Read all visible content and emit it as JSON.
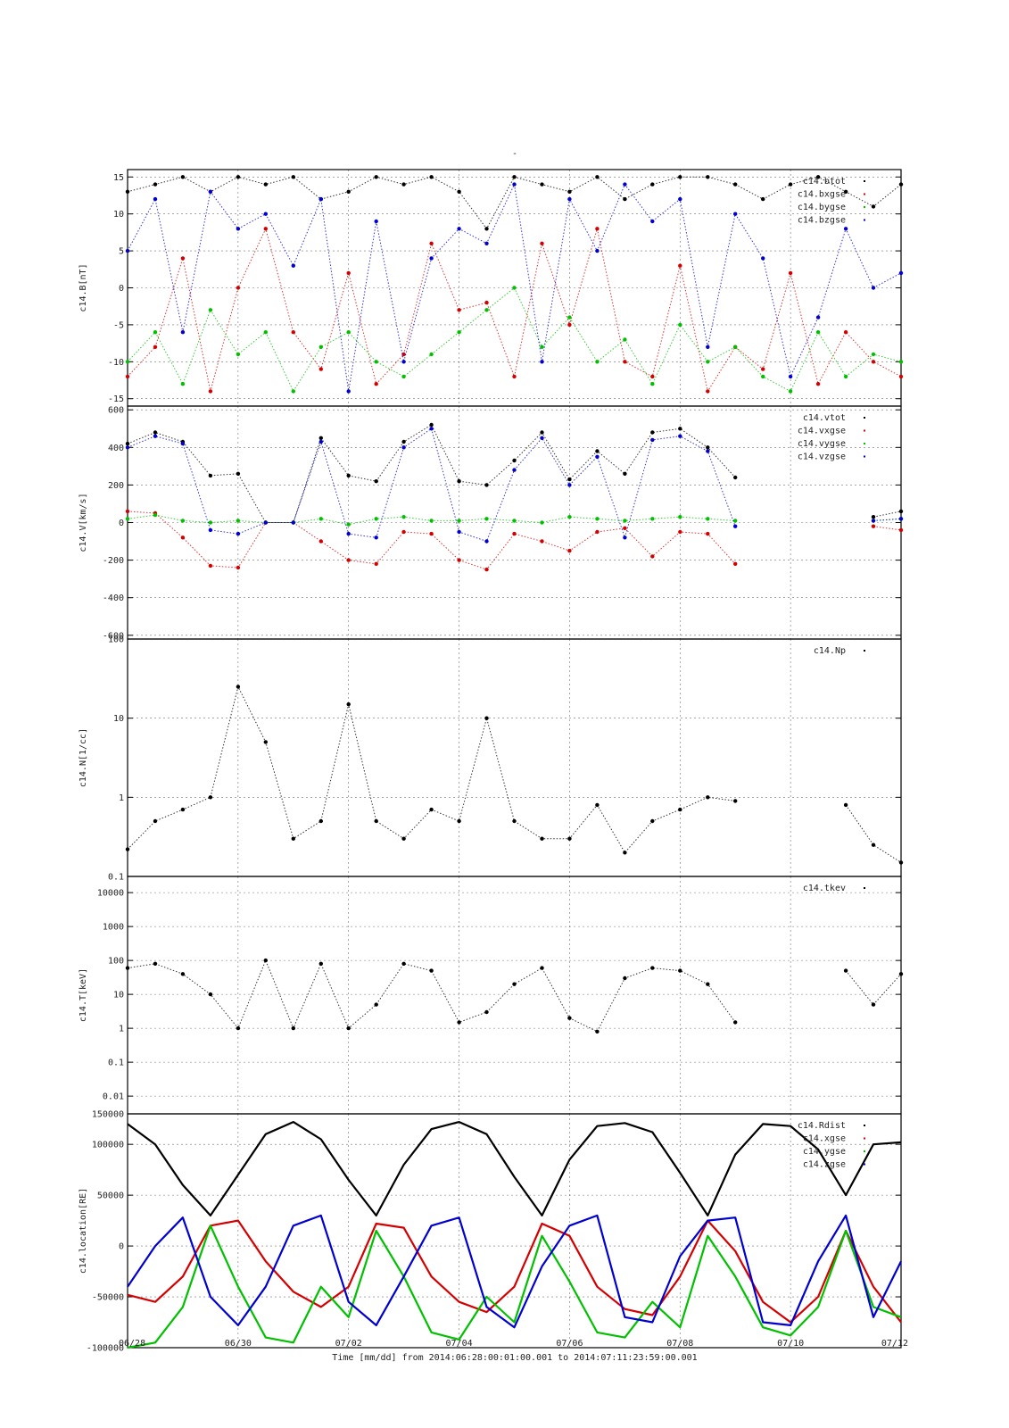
{
  "page_title": "-",
  "footer": "Time [mm/dd]  from 2014:06:28:00:01:00.001  to  2014:07:11:23:59:00.001",
  "x_ticks": [
    "06/28",
    "06/30",
    "07/02",
    "07/04",
    "07/06",
    "07/08",
    "07/10",
    "07/12"
  ],
  "colors": {
    "black": "#000000",
    "red": "#d40000",
    "green": "#00c000",
    "blue": "#0000d0"
  },
  "chart_data": [
    {
      "type": "scatter",
      "ylabel": "c14.B[nT]",
      "ylim": [
        -16,
        16
      ],
      "y_scale": "linear",
      "yticks": [
        15,
        10,
        5,
        0,
        -5,
        -10,
        -15
      ],
      "ytick_labels": [
        "15",
        "10",
        "5",
        "0",
        "-5",
        "-10",
        "-15"
      ],
      "legend_position": "top-right",
      "series": [
        {
          "name": "c14.btot",
          "color": "#000000",
          "x": [
            0.0,
            0.5,
            1.0,
            1.5,
            2.0,
            2.5,
            3.0,
            3.5,
            4.0,
            4.5,
            5.0,
            5.5,
            6.0,
            6.5,
            7.0,
            7.5,
            8.0,
            8.5,
            9.0,
            9.5,
            10.0,
            10.5,
            11.0,
            11.5,
            12.0,
            12.5,
            13.0,
            13.5,
            14.0
          ],
          "y": [
            13,
            14,
            15,
            13,
            15,
            14,
            15,
            12,
            13,
            15,
            14,
            15,
            13,
            8,
            15,
            14,
            13,
            15,
            12,
            14,
            15,
            15,
            14,
            12,
            14,
            15,
            13,
            11,
            14
          ]
        },
        {
          "name": "c14.bxgse",
          "color": "#d40000",
          "x": [
            0.0,
            0.5,
            1.0,
            1.5,
            2.0,
            2.5,
            3.0,
            3.5,
            4.0,
            4.5,
            5.0,
            5.5,
            6.0,
            6.5,
            7.0,
            7.5,
            8.0,
            8.5,
            9.0,
            9.5,
            10.0,
            10.5,
            11.0,
            11.5,
            12.0,
            12.5,
            13.0,
            13.5,
            14.0
          ],
          "y": [
            -12,
            -8,
            4,
            -14,
            0,
            8,
            -6,
            -11,
            2,
            -13,
            -9,
            6,
            -3,
            -2,
            -12,
            6,
            -5,
            8,
            -10,
            -12,
            3,
            -14,
            -8,
            -11,
            2,
            -13,
            -6,
            -10,
            -12
          ]
        },
        {
          "name": "c14.bygse",
          "color": "#00c000",
          "x": [
            0.0,
            0.5,
            1.0,
            1.5,
            2.0,
            2.5,
            3.0,
            3.5,
            4.0,
            4.5,
            5.0,
            5.5,
            6.0,
            6.5,
            7.0,
            7.5,
            8.0,
            8.5,
            9.0,
            9.5,
            10.0,
            10.5,
            11.0,
            11.5,
            12.0,
            12.5,
            13.0,
            13.5,
            14.0
          ],
          "y": [
            -10,
            -6,
            -13,
            -3,
            -9,
            -6,
            -14,
            -8,
            -6,
            -10,
            -12,
            -9,
            -6,
            -3,
            0,
            -8,
            -4,
            -10,
            -7,
            -13,
            -5,
            -10,
            -8,
            -12,
            -14,
            -6,
            -12,
            -9,
            -10
          ]
        },
        {
          "name": "c14.bzgse",
          "color": "#0000d0",
          "x": [
            0.0,
            0.5,
            1.0,
            1.5,
            2.0,
            2.5,
            3.0,
            3.5,
            4.0,
            4.5,
            5.0,
            5.5,
            6.0,
            6.5,
            7.0,
            7.5,
            8.0,
            8.5,
            9.0,
            9.5,
            10.0,
            10.5,
            11.0,
            11.5,
            12.0,
            12.5,
            13.0,
            13.5,
            14.0
          ],
          "y": [
            5,
            12,
            -6,
            13,
            8,
            10,
            3,
            12,
            -14,
            9,
            -10,
            4,
            8,
            6,
            14,
            -10,
            12,
            5,
            14,
            9,
            12,
            -8,
            10,
            4,
            -12,
            -4,
            8,
            0,
            2
          ]
        }
      ]
    },
    {
      "type": "scatter",
      "ylabel": "c14.V[km/s]",
      "ylim": [
        -620,
        620
      ],
      "y_scale": "linear",
      "yticks": [
        600,
        400,
        200,
        0,
        -200,
        -400,
        -600
      ],
      "ytick_labels": [
        "600",
        "400",
        "200",
        "0",
        "-200",
        "-400",
        "-600"
      ],
      "legend_position": "top-right",
      "series": [
        {
          "name": "c14.vtot",
          "color": "#000000",
          "x": [
            0.0,
            0.5,
            1.0,
            1.5,
            2.0,
            2.5,
            3.0,
            3.5,
            4.0,
            4.5,
            5.0,
            5.5,
            6.0,
            6.5,
            7.0,
            7.5,
            8.0,
            8.5,
            9.0,
            9.5,
            10.0,
            10.5,
            11.0,
            11.5,
            12.0,
            12.5,
            13.0,
            13.5,
            14.0
          ],
          "y": [
            420,
            480,
            430,
            250,
            260,
            0,
            0,
            450,
            250,
            220,
            430,
            520,
            220,
            200,
            330,
            480,
            230,
            380,
            260,
            480,
            500,
            400,
            240,
            null,
            null,
            null,
            null,
            30,
            60
          ]
        },
        {
          "name": "c14.vxgse",
          "color": "#d40000",
          "x": [
            0.0,
            0.5,
            1.0,
            1.5,
            2.0,
            2.5,
            3.0,
            3.5,
            4.0,
            4.5,
            5.0,
            5.5,
            6.0,
            6.5,
            7.0,
            7.5,
            8.0,
            8.5,
            9.0,
            9.5,
            10.0,
            10.5,
            11.0,
            11.5,
            12.0,
            12.5,
            13.0,
            13.5,
            14.0
          ],
          "y": [
            60,
            50,
            -80,
            -230,
            -240,
            0,
            0,
            -100,
            -200,
            -220,
            -50,
            -60,
            -200,
            -250,
            -60,
            -100,
            -150,
            -50,
            -30,
            -180,
            -50,
            -60,
            -220,
            null,
            null,
            null,
            null,
            -20,
            -40
          ]
        },
        {
          "name": "c14.vygse",
          "color": "#00c000",
          "x": [
            0.0,
            0.5,
            1.0,
            1.5,
            2.0,
            2.5,
            3.0,
            3.5,
            4.0,
            4.5,
            5.0,
            5.5,
            6.0,
            6.5,
            7.0,
            7.5,
            8.0,
            8.5,
            9.0,
            9.5,
            10.0,
            10.5,
            11.0,
            11.5,
            12.0,
            12.5,
            13.0,
            13.5,
            14.0
          ],
          "y": [
            20,
            40,
            10,
            0,
            10,
            0,
            0,
            20,
            -10,
            20,
            30,
            10,
            10,
            20,
            10,
            0,
            30,
            20,
            10,
            20,
            30,
            20,
            10,
            null,
            null,
            null,
            null,
            10,
            20
          ]
        },
        {
          "name": "c14.vzgse",
          "color": "#0000d0",
          "x": [
            0.0,
            0.5,
            1.0,
            1.5,
            2.0,
            2.5,
            3.0,
            3.5,
            4.0,
            4.5,
            5.0,
            5.5,
            6.0,
            6.5,
            7.0,
            7.5,
            8.0,
            8.5,
            9.0,
            9.5,
            10.0,
            10.5,
            11.0,
            11.5,
            12.0,
            12.5,
            13.0,
            13.5,
            14.0
          ],
          "y": [
            400,
            460,
            420,
            -40,
            -60,
            0,
            0,
            430,
            -60,
            -80,
            400,
            500,
            -50,
            -100,
            280,
            450,
            200,
            350,
            -80,
            440,
            460,
            380,
            -20,
            null,
            null,
            null,
            null,
            10,
            20
          ]
        }
      ]
    },
    {
      "type": "scatter",
      "ylabel": "c14.N[1/cc]",
      "ylim": [
        0.1,
        100
      ],
      "y_scale": "log",
      "yticks": [
        100,
        10,
        1,
        0.1
      ],
      "ytick_labels": [
        "100",
        "10",
        "1",
        "0.1"
      ],
      "legend_position": "top-right",
      "series": [
        {
          "name": "c14.Np",
          "color": "#000000",
          "x": [
            0.0,
            0.5,
            1.0,
            1.5,
            2.0,
            2.5,
            3.0,
            3.5,
            4.0,
            4.5,
            5.0,
            5.5,
            6.0,
            6.5,
            7.0,
            7.5,
            8.0,
            8.5,
            9.0,
            9.5,
            10.0,
            10.5,
            11.0,
            11.5,
            12.0,
            12.5,
            13.0,
            13.5,
            14.0
          ],
          "y": [
            0.22,
            0.5,
            0.7,
            1.0,
            25,
            5,
            0.3,
            0.5,
            15,
            0.5,
            0.3,
            0.7,
            0.5,
            10,
            0.5,
            0.3,
            0.3,
            0.8,
            0.2,
            0.5,
            0.7,
            1.0,
            0.9,
            null,
            null,
            null,
            0.8,
            0.25,
            0.15
          ]
        }
      ]
    },
    {
      "type": "scatter",
      "ylabel": "c14.T[keV]",
      "ylim": [
        0.003,
        30000
      ],
      "y_scale": "log",
      "yticks": [
        10000,
        1000,
        100,
        10,
        1,
        0.1,
        0.01
      ],
      "ytick_labels": [
        "10000",
        "1000",
        "100",
        "10",
        "1",
        "0.1",
        "0.01"
      ],
      "legend_position": "top-right",
      "series": [
        {
          "name": "c14.tkev",
          "color": "#000000",
          "x": [
            0.0,
            0.5,
            1.0,
            1.5,
            2.0,
            2.5,
            3.0,
            3.5,
            4.0,
            4.5,
            5.0,
            5.5,
            6.0,
            6.5,
            7.0,
            7.5,
            8.0,
            8.5,
            9.0,
            9.5,
            10.0,
            10.5,
            11.0,
            11.5,
            12.0,
            12.5,
            13.0,
            13.5,
            14.0
          ],
          "y": [
            60,
            80,
            40,
            10,
            1,
            100,
            1,
            80,
            1,
            5,
            80,
            50,
            1.5,
            3,
            20,
            60,
            2,
            0.8,
            30,
            60,
            50,
            20,
            1.5,
            null,
            null,
            null,
            50,
            5,
            40
          ]
        }
      ]
    },
    {
      "type": "line",
      "ylabel": "c14.location[RE]",
      "ylim": [
        -100000,
        130000
      ],
      "y_scale": "linear",
      "yticks": [
        100000,
        50000,
        0,
        -50000,
        -100000
      ],
      "ytick_labels": [
        "100000",
        "50000",
        "0",
        "-50000",
        "-100000"
      ],
      "overlap_label": "150000",
      "legend_position": "top-right",
      "series": [
        {
          "name": "c14.Rdist",
          "color": "#000000",
          "x": [
            0.0,
            0.5,
            1.0,
            1.5,
            2.0,
            2.5,
            3.0,
            3.5,
            4.0,
            4.5,
            5.0,
            5.5,
            6.0,
            6.5,
            7.0,
            7.5,
            8.0,
            8.5,
            9.0,
            9.5,
            10.0,
            10.5,
            11.0,
            11.5,
            12.0,
            12.5,
            13.0,
            13.5,
            14.0
          ],
          "y": [
            120000,
            100000,
            60000,
            30000,
            70000,
            110000,
            122000,
            105000,
            65000,
            30000,
            80000,
            115000,
            122000,
            110000,
            68000,
            30000,
            85000,
            118000,
            121000,
            112000,
            72000,
            30000,
            90000,
            120000,
            118000,
            95000,
            50000,
            100000,
            102000
          ]
        },
        {
          "name": "c14.xgse",
          "color": "#d40000",
          "x": [
            0.0,
            0.5,
            1.0,
            1.5,
            2.0,
            2.5,
            3.0,
            3.5,
            4.0,
            4.5,
            5.0,
            5.5,
            6.0,
            6.5,
            7.0,
            7.5,
            8.0,
            8.5,
            9.0,
            9.5,
            10.0,
            10.5,
            11.0,
            11.5,
            12.0,
            12.5,
            13.0,
            13.5,
            14.0
          ],
          "y": [
            -48000,
            -55000,
            -30000,
            20000,
            25000,
            -15000,
            -45000,
            -60000,
            -40000,
            22000,
            18000,
            -30000,
            -55000,
            -65000,
            -40000,
            22000,
            10000,
            -40000,
            -62000,
            -68000,
            -30000,
            25000,
            -5000,
            -55000,
            -75000,
            -50000,
            15000,
            -40000,
            -75000
          ]
        },
        {
          "name": "c14.ygse",
          "color": "#00c000",
          "x": [
            0.0,
            0.5,
            1.0,
            1.5,
            2.0,
            2.5,
            3.0,
            3.5,
            4.0,
            4.5,
            5.0,
            5.5,
            6.0,
            6.5,
            7.0,
            7.5,
            8.0,
            8.5,
            9.0,
            9.5,
            10.0,
            10.5,
            11.0,
            11.5,
            12.0,
            12.5,
            13.0,
            13.5,
            14.0
          ],
          "y": [
            -100000,
            -95000,
            -60000,
            20000,
            -40000,
            -90000,
            -95000,
            -40000,
            -70000,
            15000,
            -30000,
            -85000,
            -92000,
            -50000,
            -75000,
            10000,
            -35000,
            -85000,
            -90000,
            -55000,
            -80000,
            10000,
            -30000,
            -80000,
            -88000,
            -60000,
            15000,
            -60000,
            -70000
          ]
        },
        {
          "name": "c14.zgse",
          "color": "#0000d0",
          "x": [
            0.0,
            0.5,
            1.0,
            1.5,
            2.0,
            2.5,
            3.0,
            3.5,
            4.0,
            4.5,
            5.0,
            5.5,
            6.0,
            6.5,
            7.0,
            7.5,
            8.0,
            8.5,
            9.0,
            9.5,
            10.0,
            10.5,
            11.0,
            11.5,
            12.0,
            12.5,
            13.0,
            13.5,
            14.0
          ],
          "y": [
            -40000,
            0,
            28000,
            -50000,
            -78000,
            -40000,
            20000,
            30000,
            -55000,
            -78000,
            -30000,
            20000,
            28000,
            -60000,
            -80000,
            -20000,
            20000,
            30000,
            -70000,
            -75000,
            -10000,
            25000,
            28000,
            -75000,
            -78000,
            -15000,
            30000,
            -70000,
            -15000
          ]
        }
      ]
    }
  ]
}
